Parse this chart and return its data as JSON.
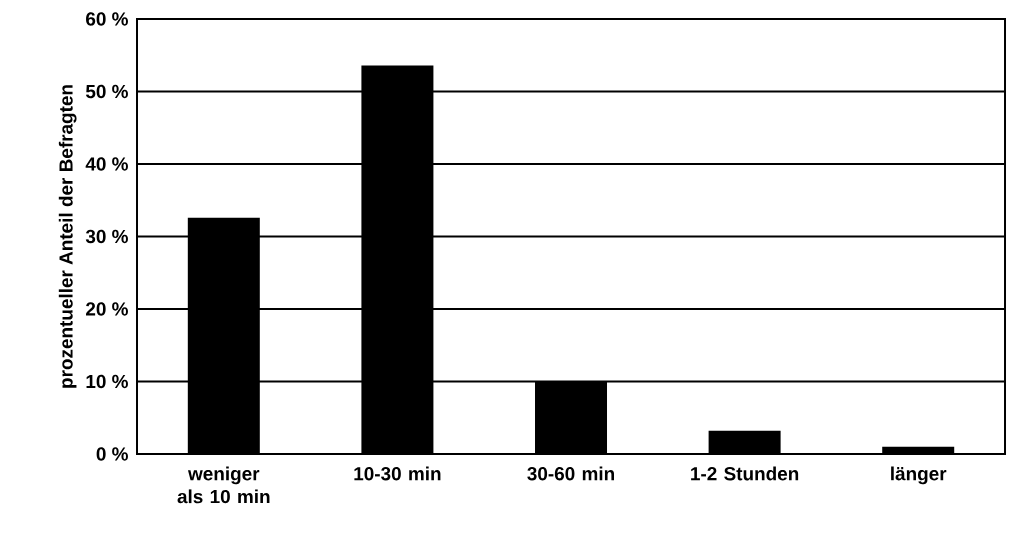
{
  "chart_data": {
    "type": "bar",
    "ylabel": "prozentueller Anteil der Befragten",
    "categories": [
      "weniger als 10 min",
      "10-30 min",
      "30-60 min",
      "1-2 Stunden",
      "länger"
    ],
    "values": [
      32.6,
      53.6,
      10,
      3.2,
      1.0
    ],
    "color": "#000000",
    "ylim": [
      0,
      60
    ],
    "yticks": [
      {
        "value": 0,
        "label": "0 %"
      },
      {
        "value": 10,
        "label": "10 %"
      },
      {
        "value": 20,
        "label": "20 %"
      },
      {
        "value": 30,
        "label": "30 %"
      },
      {
        "value": 40,
        "label": "40 %"
      },
      {
        "value": 50,
        "label": "50 %"
      },
      {
        "value": 60,
        "label": "60 %"
      }
    ],
    "grid": "y"
  }
}
